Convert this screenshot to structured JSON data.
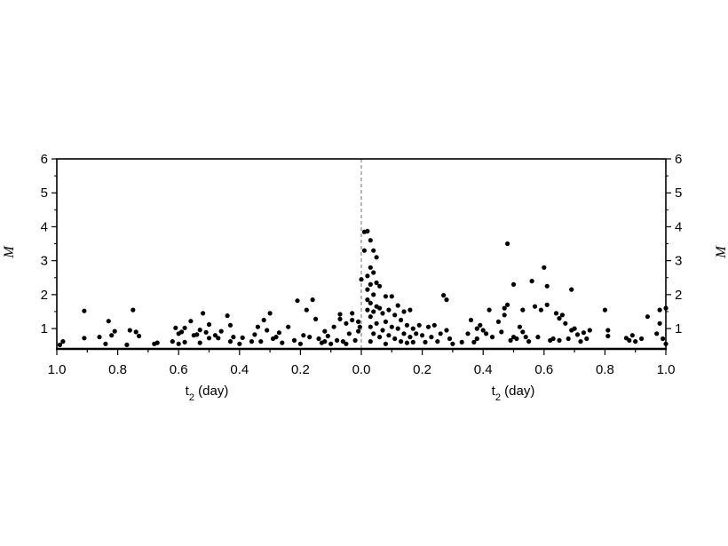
{
  "chart_data": {
    "type": "scatter",
    "title": "",
    "xlabel_left": "t",
    "xlabel_left_sub": "2",
    "xlabel_left_unit": " (day)",
    "xlabel_right": "t",
    "xlabel_right_sub": "2",
    "xlabel_right_unit": " (day)",
    "ylabel_left": "M",
    "ylabel_right": "M",
    "xlim_left": [
      1.0,
      0.0
    ],
    "xlim_right": [
      0.0,
      1.0
    ],
    "ylim": [
      0.4,
      6
    ],
    "x_ticks_left": [
      "1.0",
      "0.8",
      "0.6",
      "0.4",
      "0.2",
      "0.0"
    ],
    "x_ticks_right": [
      "0.2",
      "0.4",
      "0.6",
      "0.8",
      "1.0"
    ],
    "y_ticks": [
      "1",
      "2",
      "3",
      "4",
      "5",
      "6"
    ],
    "reference_line": {
      "x": 0.0,
      "style": "dashed"
    },
    "grid": false,
    "point_color": "#000000",
    "series": [
      {
        "side": "left",
        "points": [
          [
            0.99,
            0.52
          ],
          [
            0.98,
            0.62
          ],
          [
            0.91,
            1.52
          ],
          [
            0.91,
            0.72
          ],
          [
            0.86,
            0.75
          ],
          [
            0.84,
            0.55
          ],
          [
            0.83,
            1.22
          ],
          [
            0.82,
            0.8
          ],
          [
            0.81,
            0.92
          ],
          [
            0.77,
            0.52
          ],
          [
            0.76,
            0.95
          ],
          [
            0.75,
            1.55
          ],
          [
            0.74,
            0.9
          ],
          [
            0.73,
            0.78
          ],
          [
            0.68,
            0.55
          ],
          [
            0.67,
            0.58
          ],
          [
            0.62,
            0.62
          ],
          [
            0.61,
            1.02
          ],
          [
            0.6,
            0.85
          ],
          [
            0.6,
            0.55
          ],
          [
            0.59,
            0.9
          ],
          [
            0.58,
            1.02
          ],
          [
            0.58,
            0.6
          ],
          [
            0.56,
            1.22
          ],
          [
            0.55,
            0.8
          ],
          [
            0.54,
            0.82
          ],
          [
            0.53,
            0.96
          ],
          [
            0.53,
            0.58
          ],
          [
            0.52,
            1.45
          ],
          [
            0.51,
            0.89
          ],
          [
            0.5,
            1.12
          ],
          [
            0.5,
            0.72
          ],
          [
            0.48,
            0.8
          ],
          [
            0.47,
            0.72
          ],
          [
            0.46,
            0.92
          ],
          [
            0.44,
            1.38
          ],
          [
            0.43,
            0.62
          ],
          [
            0.43,
            1.1
          ],
          [
            0.42,
            0.75
          ],
          [
            0.4,
            0.55
          ],
          [
            0.39,
            0.73
          ],
          [
            0.36,
            0.62
          ],
          [
            0.35,
            0.82
          ],
          [
            0.34,
            1.05
          ],
          [
            0.33,
            0.62
          ],
          [
            0.32,
            1.25
          ],
          [
            0.31,
            0.95
          ],
          [
            0.3,
            1.45
          ],
          [
            0.29,
            0.7
          ],
          [
            0.28,
            0.75
          ],
          [
            0.27,
            0.88
          ],
          [
            0.26,
            0.58
          ],
          [
            0.24,
            1.05
          ],
          [
            0.22,
            0.65
          ],
          [
            0.21,
            1.82
          ],
          [
            0.2,
            0.55
          ],
          [
            0.19,
            0.8
          ],
          [
            0.18,
            1.55
          ],
          [
            0.17,
            0.75
          ],
          [
            0.16,
            1.85
          ],
          [
            0.15,
            1.28
          ],
          [
            0.14,
            0.7
          ],
          [
            0.13,
            0.58
          ],
          [
            0.12,
            0.92
          ],
          [
            0.12,
            0.62
          ],
          [
            0.11,
            0.78
          ],
          [
            0.1,
            0.55
          ],
          [
            0.09,
            1.05
          ],
          [
            0.08,
            0.65
          ],
          [
            0.07,
            1.28
          ],
          [
            0.07,
            1.42
          ],
          [
            0.06,
            0.62
          ],
          [
            0.05,
            0.55
          ],
          [
            0.05,
            1.15
          ],
          [
            0.04,
            0.85
          ],
          [
            0.03,
            1.25
          ],
          [
            0.03,
            1.45
          ],
          [
            0.02,
            0.65
          ],
          [
            0.01,
            0.92
          ],
          [
            0.01,
            1.2
          ],
          [
            0.005,
            1.05
          ]
        ]
      },
      {
        "side": "right",
        "points": [
          [
            0.0,
            2.45
          ],
          [
            0.01,
            3.85
          ],
          [
            0.01,
            3.3
          ],
          [
            0.02,
            3.87
          ],
          [
            0.02,
            2.55
          ],
          [
            0.02,
            2.15
          ],
          [
            0.02,
            1.85
          ],
          [
            0.02,
            1.55
          ],
          [
            0.03,
            3.6
          ],
          [
            0.03,
            2.8
          ],
          [
            0.03,
            2.3
          ],
          [
            0.03,
            1.75
          ],
          [
            0.03,
            1.35
          ],
          [
            0.03,
            1.05
          ],
          [
            0.03,
            0.62
          ],
          [
            0.04,
            3.3
          ],
          [
            0.04,
            2.65
          ],
          [
            0.04,
            2.0
          ],
          [
            0.04,
            1.5
          ],
          [
            0.04,
            0.85
          ],
          [
            0.05,
            3.1
          ],
          [
            0.05,
            2.35
          ],
          [
            0.05,
            1.65
          ],
          [
            0.05,
            1.15
          ],
          [
            0.06,
            2.25
          ],
          [
            0.06,
            1.6
          ],
          [
            0.06,
            0.75
          ],
          [
            0.07,
            1.45
          ],
          [
            0.07,
            0.95
          ],
          [
            0.08,
            1.95
          ],
          [
            0.08,
            1.2
          ],
          [
            0.08,
            0.55
          ],
          [
            0.09,
            1.55
          ],
          [
            0.09,
            0.8
          ],
          [
            0.1,
            1.95
          ],
          [
            0.1,
            1.05
          ],
          [
            0.11,
            1.4
          ],
          [
            0.11,
            0.7
          ],
          [
            0.12,
            1.0
          ],
          [
            0.12,
            1.68
          ],
          [
            0.13,
            1.25
          ],
          [
            0.13,
            0.62
          ],
          [
            0.14,
            1.5
          ],
          [
            0.14,
            0.85
          ],
          [
            0.15,
            1.1
          ],
          [
            0.15,
            0.58
          ],
          [
            0.16,
            1.55
          ],
          [
            0.16,
            0.75
          ],
          [
            0.17,
            1.0
          ],
          [
            0.17,
            0.6
          ],
          [
            0.18,
            0.85
          ],
          [
            0.19,
            1.1
          ],
          [
            0.2,
            0.8
          ],
          [
            0.21,
            0.6
          ],
          [
            0.22,
            1.05
          ],
          [
            0.23,
            0.75
          ],
          [
            0.24,
            1.1
          ],
          [
            0.25,
            0.62
          ],
          [
            0.26,
            0.85
          ],
          [
            0.27,
            1.98
          ],
          [
            0.28,
            1.85
          ],
          [
            0.28,
            0.95
          ],
          [
            0.29,
            0.7
          ],
          [
            0.3,
            0.55
          ],
          [
            0.33,
            0.6
          ],
          [
            0.35,
            0.85
          ],
          [
            0.36,
            1.25
          ],
          [
            0.37,
            0.6
          ],
          [
            0.38,
            1.0
          ],
          [
            0.38,
            0.7
          ],
          [
            0.39,
            1.1
          ],
          [
            0.4,
            0.95
          ],
          [
            0.41,
            0.85
          ],
          [
            0.42,
            1.55
          ],
          [
            0.43,
            0.75
          ],
          [
            0.45,
            1.2
          ],
          [
            0.46,
            0.9
          ],
          [
            0.47,
            1.6
          ],
          [
            0.47,
            1.4
          ],
          [
            0.48,
            3.5
          ],
          [
            0.48,
            1.7
          ],
          [
            0.49,
            0.65
          ],
          [
            0.5,
            2.3
          ],
          [
            0.5,
            0.75
          ],
          [
            0.51,
            0.7
          ],
          [
            0.52,
            1.05
          ],
          [
            0.53,
            1.55
          ],
          [
            0.53,
            0.9
          ],
          [
            0.54,
            0.75
          ],
          [
            0.55,
            0.62
          ],
          [
            0.56,
            2.4
          ],
          [
            0.57,
            1.65
          ],
          [
            0.58,
            0.75
          ],
          [
            0.59,
            1.55
          ],
          [
            0.6,
            2.8
          ],
          [
            0.61,
            2.25
          ],
          [
            0.61,
            1.7
          ],
          [
            0.62,
            0.65
          ],
          [
            0.63,
            0.7
          ],
          [
            0.64,
            1.45
          ],
          [
            0.65,
            1.3
          ],
          [
            0.65,
            0.65
          ],
          [
            0.66,
            1.4
          ],
          [
            0.67,
            1.15
          ],
          [
            0.68,
            0.7
          ],
          [
            0.69,
            2.15
          ],
          [
            0.69,
            0.95
          ],
          [
            0.7,
            1.0
          ],
          [
            0.71,
            0.82
          ],
          [
            0.72,
            0.62
          ],
          [
            0.73,
            0.88
          ],
          [
            0.74,
            0.7
          ],
          [
            0.75,
            0.95
          ],
          [
            0.8,
            1.55
          ],
          [
            0.81,
            0.95
          ],
          [
            0.81,
            0.78
          ],
          [
            0.87,
            0.72
          ],
          [
            0.88,
            0.65
          ],
          [
            0.89,
            0.8
          ],
          [
            0.9,
            0.62
          ],
          [
            0.92,
            0.7
          ],
          [
            0.94,
            1.35
          ],
          [
            0.97,
            0.85
          ],
          [
            0.98,
            1.55
          ],
          [
            0.98,
            1.15
          ],
          [
            0.99,
            0.7
          ],
          [
            1.0,
            1.6
          ],
          [
            1.0,
            0.55
          ]
        ]
      }
    ]
  }
}
